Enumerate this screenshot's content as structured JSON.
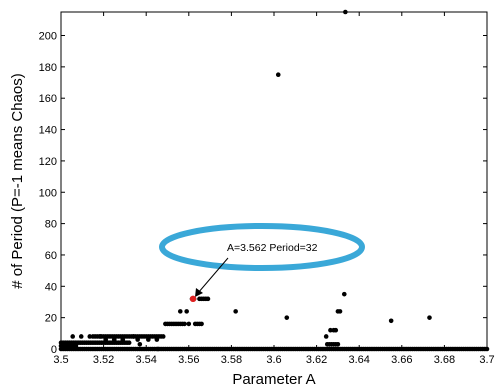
{
  "chart_data": {
    "type": "scatter",
    "xlabel": "Parameter A",
    "ylabel": "# of Period (P=-1 means Chaos)",
    "xlim": [
      3.5,
      3.7
    ],
    "ylim": [
      0,
      215
    ],
    "xticks": [
      "3.5",
      "3.52",
      "3.54",
      "3.56",
      "3.58",
      "3.6",
      "3.62",
      "3.64",
      "3.66",
      "3.68",
      "3.7"
    ],
    "yticks": [
      "0",
      "20",
      "40",
      "60",
      "80",
      "100",
      "120",
      "140",
      "160",
      "180",
      "200"
    ],
    "grid": false,
    "colors": {
      "points": "#000000",
      "highlight": "#e02020",
      "ellipse": "#3aa8d8"
    },
    "annotation": {
      "text": "A=3.562 Period=32",
      "x": 3.562,
      "y": 32
    },
    "highlight_point": {
      "x": 3.562,
      "y": 32
    },
    "clusters": [
      {
        "x0": 3.5,
        "x1": 3.532,
        "y": 4,
        "step": 0.001
      },
      {
        "x0": 3.5,
        "x1": 3.507,
        "y": 2,
        "step": 0.001
      },
      {
        "x0": 3.5,
        "x1": 3.7,
        "y": 0,
        "step": 0.001
      },
      {
        "x0": 3.515,
        "x1": 3.548,
        "y": 8,
        "step": 0.001
      },
      {
        "x0": 3.549,
        "x1": 3.558,
        "y": 16,
        "step": 0.001
      },
      {
        "x0": 3.563,
        "x1": 3.566,
        "y": 16,
        "step": 0.001
      },
      {
        "x0": 3.565,
        "x1": 3.569,
        "y": 32,
        "step": 0.001
      },
      {
        "x0": 3.625,
        "x1": 3.63,
        "y": 3,
        "step": 0.001
      }
    ],
    "points": [
      [
        3.5055,
        8
      ],
      [
        3.5095,
        8
      ],
      [
        3.5135,
        8
      ],
      [
        3.5185,
        8
      ],
      [
        3.521,
        6
      ],
      [
        3.525,
        6
      ],
      [
        3.529,
        6
      ],
      [
        3.534,
        8
      ],
      [
        3.537,
        3
      ],
      [
        3.541,
        6
      ],
      [
        3.545,
        6
      ],
      [
        3.536,
        6
      ],
      [
        3.5455,
        0
      ],
      [
        3.556,
        24
      ],
      [
        3.559,
        24
      ],
      [
        3.56,
        16
      ],
      [
        3.5615,
        32
      ],
      [
        3.5625,
        32
      ],
      [
        3.582,
        24
      ],
      [
        3.602,
        175
      ],
      [
        3.606,
        20
      ],
      [
        3.6245,
        8
      ],
      [
        3.6265,
        12
      ],
      [
        3.628,
        12
      ],
      [
        3.629,
        12
      ],
      [
        3.63,
        24
      ],
      [
        3.631,
        24
      ],
      [
        3.633,
        35
      ],
      [
        3.6335,
        215
      ],
      [
        3.655,
        18
      ],
      [
        3.673,
        20
      ]
    ]
  }
}
